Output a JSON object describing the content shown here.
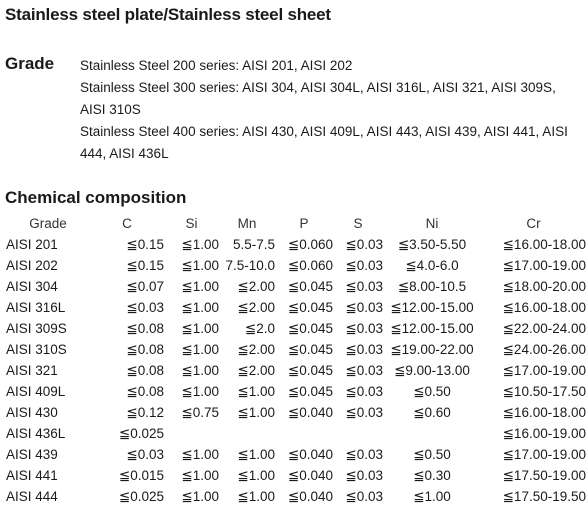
{
  "title": "Stainless steel plate/Stainless steel sheet",
  "grade_section": {
    "heading": "Grade",
    "lines": [
      "Stainless Steel 200 series: AISI 201, AISI 202",
      "Stainless Steel 300 series: AISI 304, AISI 304L, AISI 316L, AISI 321, AISI 309S, AISI 310S",
      "Stainless Steel 400 series: AISI 430, AISI 409L, AISI 443, AISI 439, AISI 441, AISI 444, AISI 436L"
    ]
  },
  "chemical_section": {
    "heading": "Chemical composition",
    "columns": [
      "Grade",
      "C",
      "Si",
      "Mn",
      "P",
      "S",
      "Ni",
      "Cr"
    ],
    "rows": [
      [
        "AISI 201",
        "≦0.15",
        "≦1.00",
        "5.5-7.5",
        "≦0.060",
        "≦0.03",
        "≦3.50-5.50",
        "≦16.00-18.00"
      ],
      [
        "AISI 202",
        "≦0.15",
        "≦1.00",
        "7.5-10.0",
        "≦0.060",
        "≦0.03",
        "≦4.0-6.0",
        "≦17.00-19.00"
      ],
      [
        "AISI 304",
        "≦0.07",
        "≦1.00",
        "≦2.00",
        "≦0.045",
        "≦0.03",
        "≦8.00-10.5",
        "≦18.00-20.00"
      ],
      [
        "AISI 316L",
        "≦0.03",
        "≦1.00",
        "≦2.00",
        "≦0.045",
        "≦0.03",
        "≦12.00-15.00",
        "≦16.00-18.00"
      ],
      [
        "AISI 309S",
        "≦0.08",
        "≦1.00",
        "≦2.0",
        "≦0.045",
        "≦0.03",
        "≦12.00-15.00",
        "≦22.00-24.00"
      ],
      [
        "AISI 310S",
        "≦0.08",
        "≦1.00",
        "≦2.00",
        "≦0.045",
        "≦0.03",
        "≦19.00-22.00",
        "≦24.00-26.00"
      ],
      [
        "AISI 321",
        "≦0.08",
        "≦1.00",
        "≦2.00",
        "≦0.045",
        "≦0.03",
        "≦9.00-13.00",
        "≦17.00-19.00"
      ],
      [
        "AISI 409L",
        "≦0.08",
        "≦1.00",
        "≦1.00",
        "≦0.045",
        "≦0.03",
        "≦0.50",
        "≦10.50-17.50"
      ],
      [
        "AISI 430",
        "≦0.12",
        "≦0.75",
        "≦1.00",
        "≦0.040",
        "≦0.03",
        "≦0.60",
        "≦16.00-18.00"
      ],
      [
        "AISI 436L",
        "≦0.025",
        "",
        "",
        "",
        "",
        "",
        "≦16.00-19.00"
      ],
      [
        "AISI 439",
        "≦0.03",
        "≦1.00",
        "≦1.00",
        "≦0.040",
        "≦0.03",
        "≦0.50",
        "≦17.00-19.00"
      ],
      [
        "AISI 441",
        "≦0.015",
        "≦1.00",
        "≦1.00",
        "≦0.040",
        "≦0.03",
        "≦0.30",
        "≦17.50-19.00"
      ],
      [
        "AISI 444",
        "≦0.025",
        "≦1.00",
        "≦1.00",
        "≦0.040",
        "≦0.03",
        "≦1.00",
        "≦17.50-19.50"
      ]
    ]
  }
}
